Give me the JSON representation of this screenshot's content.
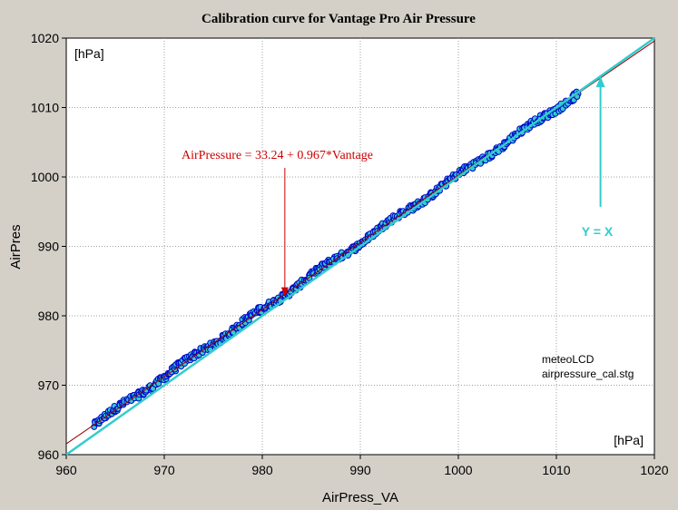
{
  "chart_data": {
    "type": "scatter",
    "title": "Calibration curve for Vantage Pro Air Pressure",
    "xlabel": "AirPress_VA",
    "ylabel": "AirPres",
    "xlim": [
      960,
      1020
    ],
    "ylim": [
      960,
      1020
    ],
    "x_ticks": [
      960,
      970,
      980,
      990,
      1000,
      1010,
      1020
    ],
    "y_ticks": [
      960,
      970,
      980,
      990,
      1000,
      1010,
      1020
    ],
    "grid": true,
    "unit_label_top_left": "[hPa]",
    "unit_label_bottom_right": "[hPa]",
    "fit": {
      "intercept": 33.24,
      "slope": 0.967,
      "color": "#990000",
      "label": "AirPressure = 33.24 + 0.967*Vantage"
    },
    "identity": {
      "slope": 1,
      "intercept": 0,
      "color": "#33cccc",
      "label": "Y = X"
    },
    "fit_annotation_point": {
      "x": 982.3,
      "y": 982.8
    },
    "identity_annotation_point": {
      "x": 1014.5,
      "y": 1014.5
    },
    "note_lines": [
      "meteoLCD",
      "airpressure_cal.stg"
    ],
    "series": [
      {
        "marker_color": "#0000cc",
        "fill": "#33cccc",
        "x_range": [
          962.8,
          1012.2
        ],
        "n_points": 650,
        "offset_from_fit": 0.0,
        "scatter": 0.5
      }
    ],
    "colors": {
      "background": "#d4d0c8",
      "plot_bg": "#ffffff",
      "grid": "#a0a0a0",
      "title": "#000000",
      "fit_label": "#cc0000",
      "identity_label": "#33cccc"
    }
  }
}
